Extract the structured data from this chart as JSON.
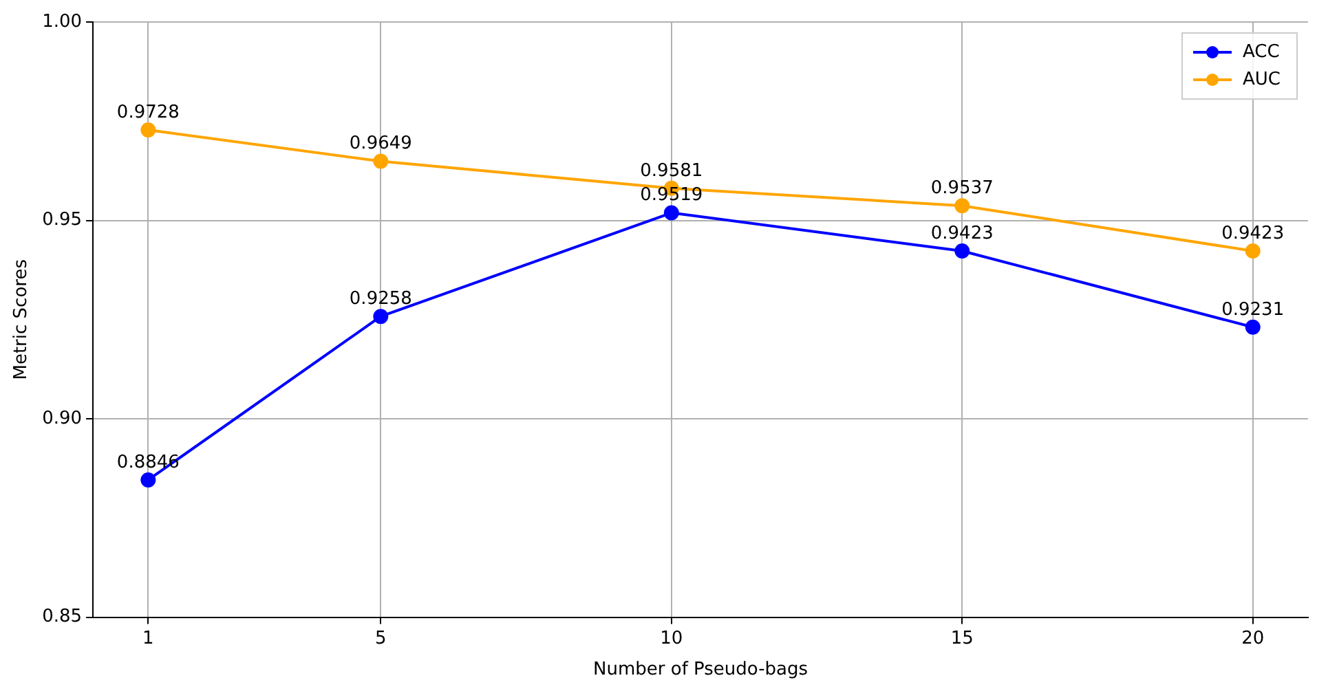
{
  "chart_data": {
    "type": "line",
    "xlabel": "Number of Pseudo-bags",
    "ylabel": "Metric Scores",
    "x": [
      1,
      5,
      10,
      15,
      20
    ],
    "series": [
      {
        "name": "ACC",
        "color": "#0000ff",
        "values": [
          0.8846,
          0.9258,
          0.9519,
          0.9423,
          0.9231
        ]
      },
      {
        "name": "AUC",
        "color": "#ffa500",
        "values": [
          0.9728,
          0.9649,
          0.9581,
          0.9537,
          0.9423
        ]
      }
    ],
    "xlim": [
      0.05,
      20.95
    ],
    "xticks": [
      1,
      5,
      10,
      15,
      20
    ],
    "ylim": [
      0.85,
      1.0
    ],
    "yticks": [
      0.85,
      {
        "value": 0.9,
        "label": "0.90"
      },
      0.95,
      {
        "value": 1.0,
        "label": "1.00"
      }
    ],
    "grid": true,
    "legend": "top right",
    "marker": "circle",
    "line_style": "solid",
    "data_labels": true
  }
}
